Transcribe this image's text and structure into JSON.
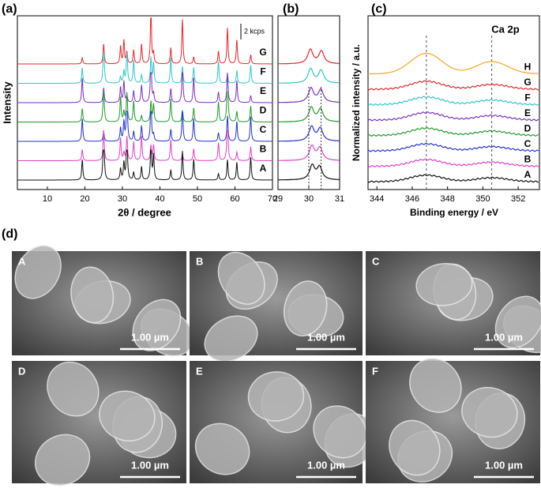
{
  "panel_a": {
    "label": "(a)",
    "xlabel": "2θ / degree",
    "ylabel": "Intensity",
    "xlim": [
      2,
      70
    ],
    "xticks": [
      10,
      20,
      30,
      40,
      50,
      60,
      70
    ],
    "scale_bar": "2 kcps",
    "traces": [
      "G",
      "F",
      "E",
      "D",
      "C",
      "B",
      "A"
    ],
    "colors": [
      "#e8262a",
      "#2ec8c8",
      "#7a2fc0",
      "#1f9a2c",
      "#2233cc",
      "#e040c8",
      "#111111"
    ],
    "peaks": [
      19.3,
      25.0,
      29.5,
      30.4,
      31.2,
      33.0,
      35.1,
      37.6,
      38.3,
      42.9,
      46.0,
      49.0,
      55.6,
      58.0,
      60.5,
      64.2
    ]
  },
  "panel_b": {
    "label": "(b)",
    "xlim": [
      29,
      31
    ],
    "xticks": [
      29,
      30,
      31
    ],
    "reference_lines": [
      30,
      30.4
    ]
  },
  "panel_c": {
    "label": "(c)",
    "title": "Ca 2p",
    "xlabel": "Binding energy / eV",
    "ylabel": "Normalized intensity / a.u.",
    "xlim": [
      343.5,
      353.2
    ],
    "xticks": [
      344,
      346,
      348,
      350,
      352
    ],
    "traces": [
      "H",
      "G",
      "F",
      "E",
      "D",
      "C",
      "B",
      "A"
    ],
    "colors": [
      "#f5a623",
      "#e8262a",
      "#2ec8c8",
      "#7a2fc0",
      "#1f9a2c",
      "#2233cc",
      "#e040c8",
      "#111111"
    ],
    "reference_lines": [
      346.8,
      350.5
    ]
  },
  "panel_d": {
    "label": "(d)",
    "images": [
      {
        "label": "A",
        "scale_bar": "1.00 µm"
      },
      {
        "label": "B",
        "scale_bar": "1.00 µm"
      },
      {
        "label": "C",
        "scale_bar": "1.00 µm"
      },
      {
        "label": "D",
        "scale_bar": "1.00 µm"
      },
      {
        "label": "E",
        "scale_bar": "1.00 µm"
      },
      {
        "label": "F",
        "scale_bar": "1.00 µm"
      }
    ]
  }
}
